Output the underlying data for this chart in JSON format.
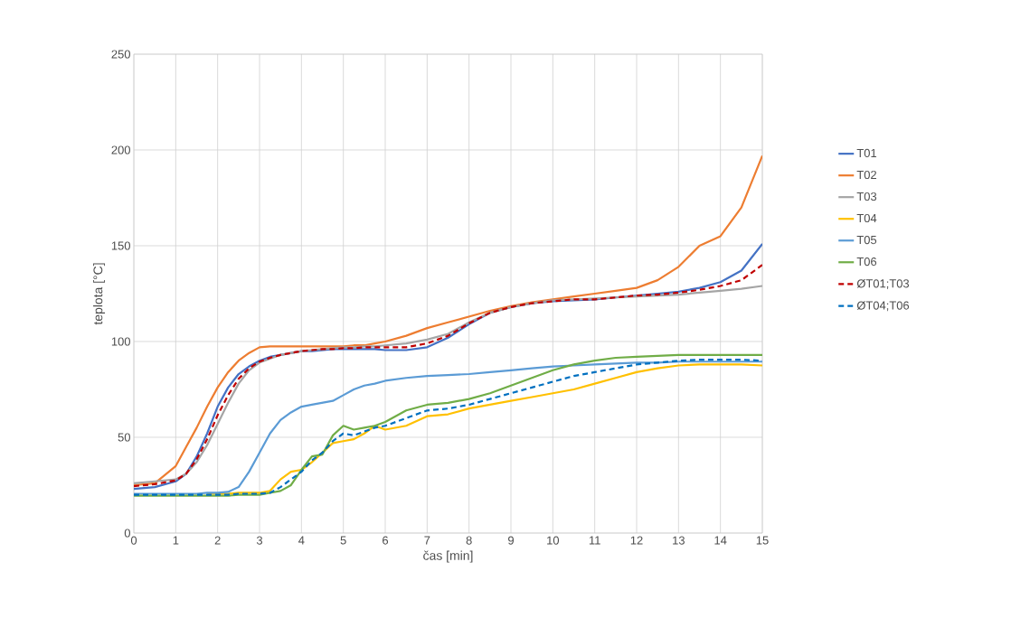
{
  "chart_data": {
    "type": "line",
    "xlabel": "čas [min]",
    "ylabel": "teplota [°C]",
    "x": [
      0,
      0.5,
      1,
      1.25,
      1.5,
      1.75,
      2,
      2.25,
      2.5,
      2.75,
      3,
      3.25,
      3.5,
      3.75,
      4,
      4.25,
      4.5,
      4.75,
      5,
      5.25,
      5.5,
      5.75,
      6,
      6.5,
      7,
      7.5,
      8,
      8.5,
      9,
      9.5,
      10,
      10.5,
      11,
      11.5,
      12,
      12.5,
      13,
      13.5,
      14,
      14.5,
      15
    ],
    "series": [
      {
        "name": "T01",
        "color": "#4472c4",
        "values": [
          23,
          24,
          27,
          31,
          40,
          52,
          66,
          76,
          83,
          87,
          90,
          92,
          93,
          94,
          95,
          95,
          95.5,
          96,
          96,
          96,
          96,
          96,
          95.5,
          95.5,
          97,
          102,
          109,
          115,
          118,
          120,
          121,
          121.5,
          122,
          123,
          124,
          125,
          126,
          128,
          131,
          137,
          151
        ]
      },
      {
        "name": "T02",
        "color": "#ed7d31",
        "values": [
          25,
          26,
          35,
          45,
          55,
          66,
          76,
          84,
          90,
          94,
          97,
          97.5,
          97.5,
          97.5,
          97.5,
          97.5,
          97.5,
          97.5,
          97.5,
          98,
          98,
          99,
          100,
          103,
          107,
          110,
          113,
          116,
          118.5,
          120.5,
          122,
          123.5,
          125,
          126.5,
          128,
          132,
          139,
          150,
          155,
          170,
          197
        ]
      },
      {
        "name": "T03",
        "color": "#a5a5a5",
        "values": [
          26,
          27,
          28,
          31,
          37,
          46,
          57,
          68,
          78,
          85,
          89,
          91,
          93,
          94,
          95,
          95.5,
          96,
          96.5,
          97,
          97,
          97.5,
          97.5,
          98,
          99,
          101,
          104,
          110,
          115,
          118,
          120,
          121.5,
          122,
          122.5,
          123,
          123.5,
          124,
          124.5,
          125.5,
          126.5,
          127.5,
          129
        ]
      },
      {
        "name": "T04",
        "color": "#ffc000",
        "values": [
          null,
          null,
          null,
          null,
          null,
          20.5,
          20.5,
          20.5,
          21,
          21,
          21,
          22,
          28,
          32,
          33,
          37,
          42,
          47,
          48,
          49,
          52,
          56,
          54,
          56,
          61,
          62,
          65,
          67,
          69,
          71,
          73,
          75,
          78,
          81,
          84,
          86,
          87.5,
          88,
          88,
          88,
          87.5
        ]
      },
      {
        "name": "T05",
        "color": "#5b9bd5",
        "values": [
          20.5,
          20.5,
          20.5,
          20.5,
          20.5,
          21,
          21,
          21.5,
          24,
          32,
          42,
          52,
          59,
          63,
          66,
          67,
          68,
          69,
          72,
          75,
          77,
          78,
          79.5,
          81,
          82,
          82.5,
          83,
          84,
          85,
          86,
          87,
          87.5,
          88,
          88.5,
          89,
          89,
          89.5,
          89.5,
          89.5,
          89.5,
          89.5
        ]
      },
      {
        "name": "T06",
        "color": "#70ad47",
        "values": [
          19.5,
          19.5,
          19.5,
          19.5,
          19.5,
          19.5,
          19.5,
          19.5,
          20,
          20,
          20,
          21,
          22,
          25,
          33,
          40,
          41,
          51,
          56,
          54,
          55,
          56,
          58,
          64,
          67,
          68,
          70,
          73,
          77,
          81,
          85,
          88,
          90,
          91.5,
          92,
          92.5,
          93,
          93,
          93,
          93,
          93
        ]
      },
      {
        "name": "ØT01;T03",
        "color": "#c00000",
        "line_style": "dashed",
        "values": [
          24.5,
          25.5,
          27.5,
          31,
          38.5,
          49,
          61.5,
          72,
          80.5,
          86,
          89.5,
          91.5,
          93,
          94,
          95,
          95.5,
          96,
          96,
          96.5,
          96.5,
          97,
          97,
          97,
          97,
          99,
          103,
          109.5,
          115,
          118,
          120,
          121,
          122,
          122,
          123,
          124,
          124.5,
          125.5,
          127,
          129,
          132,
          140
        ]
      },
      {
        "name": "ØT04;T06",
        "color": "#0070c0",
        "line_style": "dashed",
        "values": [
          20,
          20,
          20,
          20,
          20,
          20,
          20,
          20,
          20.5,
          20.5,
          20.5,
          21,
          24,
          28,
          32,
          38,
          42,
          48,
          52,
          51,
          53,
          55,
          56,
          60,
          64,
          65,
          67,
          70,
          73,
          76,
          79,
          82,
          84,
          86,
          88,
          89,
          90,
          90.5,
          90.5,
          90.5,
          90
        ]
      }
    ],
    "xlim": [
      0,
      15
    ],
    "xticks": [
      0,
      1,
      2,
      3,
      4,
      5,
      6,
      7,
      8,
      9,
      10,
      11,
      12,
      13,
      14,
      15
    ],
    "ylim": [
      0,
      250
    ],
    "yticks": [
      0,
      50,
      100,
      150,
      200,
      250
    ],
    "grid": true,
    "legend": "right"
  }
}
